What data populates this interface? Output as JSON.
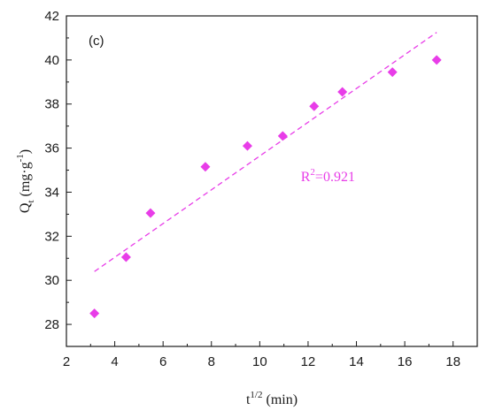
{
  "chart_data": {
    "type": "scatter",
    "panel_label": "(c)",
    "xlabel": {
      "main": "t",
      "sup": "1/2",
      "rest": " (min)"
    },
    "ylabel": {
      "main": "Q",
      "sub": "t",
      "rest": " (mg·g",
      "sup": "-1",
      "close": ")"
    },
    "xlim": [
      2,
      19
    ],
    "ylim": [
      27,
      42
    ],
    "x_ticks": [
      2,
      4,
      6,
      8,
      10,
      12,
      14,
      16,
      18
    ],
    "y_ticks": [
      28,
      30,
      32,
      34,
      36,
      38,
      40,
      42
    ],
    "series": [
      {
        "color": "#e83de8",
        "marker": "diamond",
        "points": [
          {
            "x": 3.16,
            "y": 28.5
          },
          {
            "x": 4.47,
            "y": 31.05
          },
          {
            "x": 5.48,
            "y": 33.05
          },
          {
            "x": 7.75,
            "y": 35.15
          },
          {
            "x": 9.49,
            "y": 36.1
          },
          {
            "x": 10.95,
            "y": 36.55
          },
          {
            "x": 12.25,
            "y": 37.9
          },
          {
            "x": 13.42,
            "y": 38.55
          },
          {
            "x": 15.49,
            "y": 39.45
          },
          {
            "x": 17.32,
            "y": 40.0
          }
        ]
      }
    ],
    "fit_line": {
      "style": "dashed",
      "color": "#e83de8",
      "start": {
        "x": 3.16,
        "y": 30.4
      },
      "end": {
        "x": 17.32,
        "y": 41.25
      }
    },
    "annotation": {
      "main": "R",
      "sup": "2",
      "rest": "=0.921",
      "x": 11.7,
      "y": 34.5,
      "color": "#e83de8"
    }
  }
}
